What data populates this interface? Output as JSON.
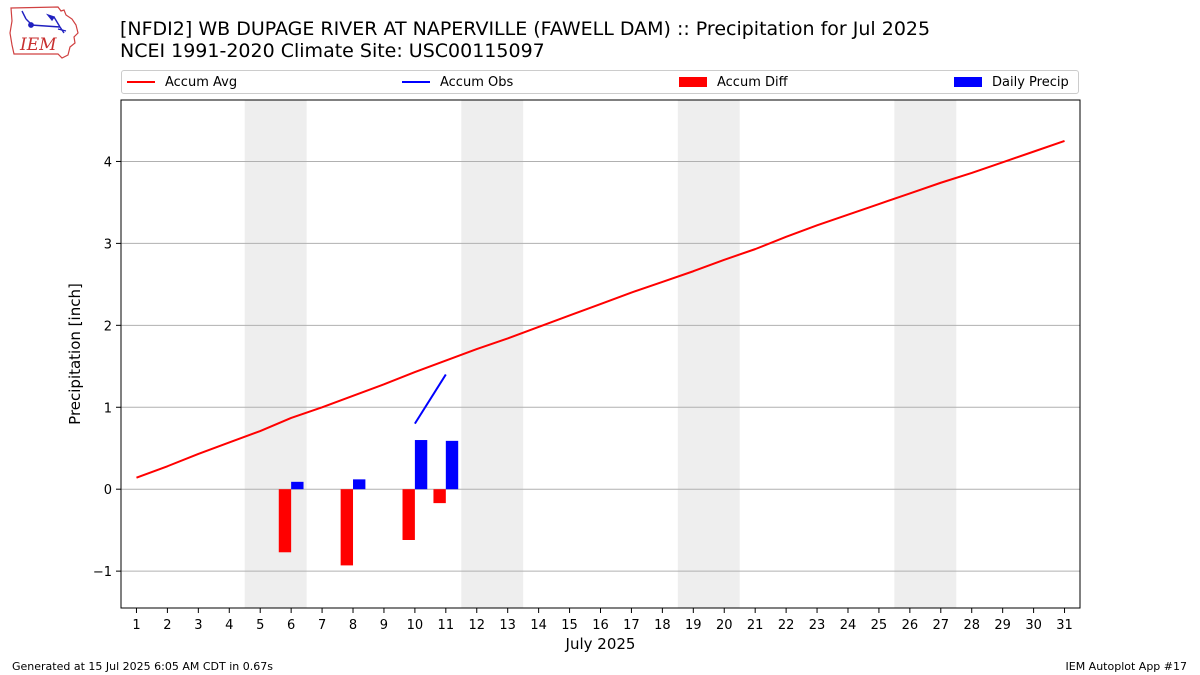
{
  "header": {
    "title_line1": "[NFDI2] WB DUPAGE RIVER AT NAPERVILLE (FAWELL DAM) :: Precipitation for Jul 2025",
    "title_line2": "NCEI 1991-2020 Climate Site: USC00115097",
    "logo_text": "IEM"
  },
  "legend": {
    "items": [
      {
        "label": "Accum Avg",
        "color": "#ff0000",
        "kind": "line"
      },
      {
        "label": "Accum Obs",
        "color": "#0000ff",
        "kind": "line"
      },
      {
        "label": "Accum Diff",
        "color": "#ff0000",
        "kind": "box"
      },
      {
        "label": "Daily Precip",
        "color": "#0000ff",
        "kind": "box"
      }
    ]
  },
  "footer": {
    "left": "Generated at 15 Jul 2025 6:05 AM CDT in 0.67s",
    "right": "IEM Autoplot App #17"
  },
  "chart_data": {
    "type": "bar",
    "xlabel": "July 2025",
    "ylabel": "Precipitation [inch]",
    "xlim": [
      0.5,
      31.5
    ],
    "ylim": [
      -1.45,
      4.75
    ],
    "yticks": [
      -1,
      0,
      1,
      2,
      3,
      4
    ],
    "ytick_labels": [
      "−1",
      "0",
      "1",
      "2",
      "3",
      "4"
    ],
    "grid": "horizontal",
    "legend_position": "top",
    "weekend_shading": [
      [
        4.5,
        6.5
      ],
      [
        11.5,
        13.5
      ],
      [
        18.5,
        20.5
      ],
      [
        25.5,
        27.5
      ]
    ],
    "x": [
      1,
      2,
      3,
      4,
      5,
      6,
      7,
      8,
      9,
      10,
      11,
      12,
      13,
      14,
      15,
      16,
      17,
      18,
      19,
      20,
      21,
      22,
      23,
      24,
      25,
      26,
      27,
      28,
      29,
      30,
      31
    ],
    "series": [
      {
        "name": "Accum Avg",
        "type": "line",
        "color": "#ff0000",
        "x": [
          1,
          2,
          3,
          4,
          5,
          6,
          7,
          8,
          9,
          10,
          11,
          12,
          13,
          14,
          15,
          16,
          17,
          18,
          19,
          20,
          21,
          22,
          23,
          24,
          25,
          26,
          27,
          28,
          29,
          30,
          31
        ],
        "values": [
          0.14,
          0.28,
          0.43,
          0.57,
          0.71,
          0.87,
          1.0,
          1.14,
          1.28,
          1.43,
          1.57,
          1.71,
          1.84,
          1.98,
          2.12,
          2.26,
          2.4,
          2.53,
          2.66,
          2.8,
          2.93,
          3.08,
          3.22,
          3.35,
          3.48,
          3.61,
          3.74,
          3.86,
          3.99,
          4.12,
          4.25
        ]
      },
      {
        "name": "Accum Obs",
        "type": "line",
        "color": "#0000ff",
        "x": [
          10,
          11
        ],
        "values": [
          0.8,
          1.4
        ]
      },
      {
        "name": "Accum Diff",
        "type": "bar",
        "color": "#ff0000",
        "x": [
          6,
          8,
          10,
          11
        ],
        "values": [
          -0.77,
          -0.93,
          -0.62,
          -0.17
        ]
      },
      {
        "name": "Daily Precip",
        "type": "bar",
        "color": "#0000ff",
        "x": [
          6,
          8,
          10,
          11
        ],
        "values": [
          0.09,
          0.12,
          0.6,
          0.59
        ]
      }
    ]
  }
}
